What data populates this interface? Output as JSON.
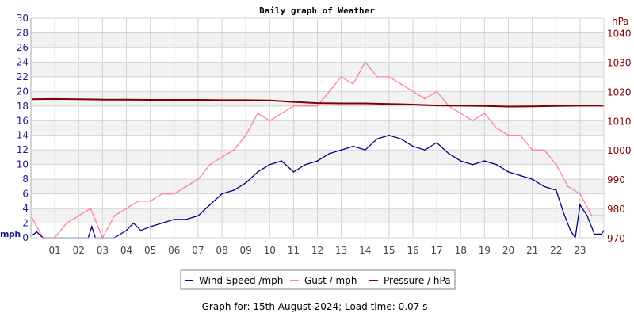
{
  "chart_data": {
    "type": "line",
    "title": "Daily graph of Weather",
    "footer": "Graph for: 15th August 2024; Load time: 0.07 s",
    "xlabel": "",
    "ylabel": "mph",
    "y2label": "hPa",
    "xlim": [
      0,
      24
    ],
    "ylim": [
      0,
      30
    ],
    "y2lim": [
      970,
      1045
    ],
    "x_ticks": [
      "01",
      "02",
      "03",
      "04",
      "05",
      "06",
      "07",
      "08",
      "09",
      "10",
      "11",
      "12",
      "13",
      "14",
      "15",
      "16",
      "17",
      "18",
      "19",
      "20",
      "21",
      "22",
      "23"
    ],
    "y_ticks": [
      0,
      2,
      4,
      6,
      8,
      10,
      12,
      14,
      16,
      18,
      20,
      22,
      24,
      26,
      28,
      30
    ],
    "y2_ticks": [
      970,
      980,
      990,
      1000,
      1010,
      1020,
      1030,
      1040
    ],
    "grid": true,
    "legend_position": "bottom",
    "colors": {
      "wind": "#000080",
      "gust": "#ff7fa8",
      "pressure": "#800000",
      "left_axis": "#1a1a8c",
      "right_axis": "#800000",
      "band": "#f2f2f2",
      "grid": "#d3d3d3"
    },
    "series": [
      {
        "name": "Wind Speed /mph",
        "key": "wind",
        "x": [
          0,
          0.25,
          0.5,
          1,
          1.5,
          2,
          2.4,
          2.55,
          2.7,
          3,
          3.5,
          4,
          4.3,
          4.6,
          5,
          5.5,
          6,
          6.5,
          7,
          7.5,
          8,
          8.5,
          9,
          9.5,
          10,
          10.5,
          11,
          11.5,
          12,
          12.5,
          13,
          13.5,
          14,
          14.5,
          15,
          15.5,
          16,
          16.5,
          17,
          17.5,
          18,
          18.5,
          19,
          19.5,
          20,
          20.5,
          21,
          21.5,
          22,
          22.3,
          22.6,
          22.8,
          23,
          23.3,
          23.6,
          23.9,
          24
        ],
        "values": [
          0.2,
          0.8,
          0,
          0,
          0,
          0,
          0,
          1.5,
          0,
          0,
          0,
          1,
          2,
          1,
          1.5,
          2,
          2.5,
          2.5,
          3,
          4.5,
          6,
          6.5,
          7.5,
          9,
          10,
          10.5,
          9,
          10,
          10.5,
          11.5,
          12,
          12.5,
          12,
          13.5,
          14,
          13.5,
          12.5,
          12,
          13,
          11.5,
          10.5,
          10,
          10.5,
          10,
          9,
          8.5,
          8,
          7,
          6.5,
          3.5,
          1,
          0,
          4.5,
          3,
          0.5,
          0.5,
          1
        ]
      },
      {
        "name": "Gust / mph",
        "key": "gust",
        "x": [
          0,
          0.5,
          1,
          1.5,
          2,
          2.5,
          3,
          3.5,
          4,
          4.5,
          5,
          5.5,
          6,
          6.5,
          7,
          7.5,
          8,
          8.5,
          9,
          9.5,
          10,
          10.5,
          11,
          11.5,
          12,
          12.5,
          13,
          13.5,
          14,
          14.5,
          15,
          15.5,
          16,
          16.5,
          17,
          17.5,
          18,
          18.5,
          19,
          19.5,
          20,
          20.5,
          21,
          21.5,
          22,
          22.5,
          23,
          23.5,
          24
        ],
        "values": [
          3,
          0,
          0,
          2,
          3,
          4,
          0,
          3,
          4,
          5,
          5,
          6,
          6,
          7,
          8,
          10,
          11,
          12,
          14,
          17,
          16,
          17,
          18,
          18,
          18,
          20,
          22,
          21,
          24,
          22,
          22,
          21,
          20,
          19,
          20,
          18,
          17,
          16,
          17,
          15,
          14,
          14,
          12,
          12,
          10,
          7,
          6,
          3,
          3
        ]
      },
      {
        "name": "Pressure / hPa",
        "key": "pressure",
        "axis": "right",
        "x": [
          0,
          1,
          2,
          3,
          4,
          5,
          6,
          7,
          8,
          9,
          10,
          11,
          12,
          13,
          14,
          15,
          16,
          17,
          18,
          19,
          20,
          21,
          22,
          23,
          24
        ],
        "values": [
          1017.3,
          1017.4,
          1017.3,
          1017.2,
          1017.2,
          1017.1,
          1017.1,
          1017.1,
          1017.0,
          1017.0,
          1016.9,
          1016.4,
          1016.0,
          1015.9,
          1015.9,
          1015.7,
          1015.5,
          1015.2,
          1015.1,
          1015.0,
          1014.8,
          1014.9,
          1015.0,
          1015.1,
          1015.1
        ]
      }
    ]
  }
}
